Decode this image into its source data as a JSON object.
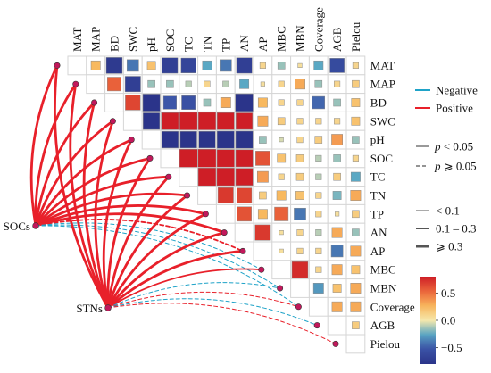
{
  "chart_data": {
    "type": "heatmap",
    "variables": [
      "MAT",
      "MAP",
      "BD",
      "SWC",
      "pH",
      "SOC",
      "TC",
      "TN",
      "TP",
      "AN",
      "AP",
      "MBC",
      "MBN",
      "Coverage",
      "AGB",
      "Pielou"
    ],
    "matrix_lower_triangle": [
      [],
      [
        0.25
      ],
      [
        -0.75,
        0.55
      ],
      [
        -0.4,
        -0.7,
        0.65
      ],
      [
        0.2,
        -0.15,
        -0.85,
        -0.8
      ],
      [
        -0.7,
        -0.15,
        -0.5,
        0.85,
        -0.8
      ],
      [
        -0.65,
        -0.1,
        -0.55,
        0.9,
        -0.8,
        0.95
      ],
      [
        -0.25,
        0.1,
        -0.15,
        0.9,
        -0.8,
        0.95,
        0.92
      ],
      [
        -0.4,
        -0.1,
        0.3,
        0.85,
        -0.85,
        0.88,
        0.9,
        0.7
      ],
      [
        -0.7,
        -0.25,
        -0.9,
        0.8,
        -0.85,
        0.85,
        0.85,
        0.65,
        0.6
      ],
      [
        0.1,
        0.05,
        0.25,
        0.3,
        -0.15,
        0.6,
        0.35,
        0.15,
        0.25,
        0.7
      ],
      [
        -0.15,
        0.1,
        0.1,
        0.15,
        -0.05,
        0.2,
        0.1,
        0.25,
        0.55,
        0.05,
        0.05
      ],
      [
        0.05,
        0.3,
        0.1,
        0.1,
        0.1,
        0.15,
        0.15,
        0.2,
        -0.4,
        0.1,
        0.1,
        0.75
      ],
      [
        -0.25,
        -0.15,
        -0.45,
        0.1,
        0.15,
        -0.1,
        -0.1,
        0.1,
        0.1,
        -0.1,
        0.1,
        0.1,
        -0.3
      ],
      [
        -0.6,
        0.1,
        -0.15,
        0.1,
        0.35,
        -0.15,
        0.15,
        -0.2,
        0.05,
        0.3,
        -0.4,
        0.3,
        0.2,
        0.3
      ],
      [
        0.1,
        0.15,
        0.2,
        0.2,
        -0.15,
        0.1,
        -0.25,
        0.3,
        0.15,
        -0.15,
        0.3,
        0.2,
        0.3,
        0.3,
        0.15
      ]
    ],
    "groups": [
      "SOCs",
      "STNs"
    ],
    "mantel_links": [
      {
        "from": "SOCs",
        "to": "MAT",
        "sign": "Positive",
        "p": "< 0.05",
        "r": ">= 0.3"
      },
      {
        "from": "SOCs",
        "to": "MAP",
        "sign": "Positive",
        "p": "< 0.05",
        "r": ">= 0.3"
      },
      {
        "from": "SOCs",
        "to": "BD",
        "sign": "Positive",
        "p": "< 0.05",
        "r": ">= 0.3"
      },
      {
        "from": "SOCs",
        "to": "SWC",
        "sign": "Positive",
        "p": "< 0.05",
        "r": ">= 0.3"
      },
      {
        "from": "SOCs",
        "to": "pH",
        "sign": "Positive",
        "p": "< 0.05",
        "r": ">= 0.3"
      },
      {
        "from": "SOCs",
        "to": "SOC",
        "sign": "Positive",
        "p": "< 0.05",
        "r": ">= 0.3"
      },
      {
        "from": "SOCs",
        "to": "TC",
        "sign": "Positive",
        "p": "< 0.05",
        "r": ">= 0.3"
      },
      {
        "from": "SOCs",
        "to": "TN",
        "sign": "Positive",
        "p": "< 0.05",
        "r": ">= 0.3"
      },
      {
        "from": "SOCs",
        "to": "TP",
        "sign": "Positive",
        "p": "< 0.05",
        "r": ">= 0.3"
      },
      {
        "from": "SOCs",
        "to": "AN",
        "sign": "Positive",
        "p": "< 0.05",
        "r": ">= 0.3"
      },
      {
        "from": "SOCs",
        "to": "AP",
        "sign": "Positive",
        "p": ">= 0.05",
        "r": "0.1 - 0.3"
      },
      {
        "from": "SOCs",
        "to": "MBC",
        "sign": "Negative",
        "p": ">= 0.05",
        "r": "< 0.1"
      },
      {
        "from": "SOCs",
        "to": "MBN",
        "sign": "Negative",
        "p": ">= 0.05",
        "r": "< 0.1"
      },
      {
        "from": "SOCs",
        "to": "Coverage",
        "sign": "Negative",
        "p": ">= 0.05",
        "r": "< 0.1"
      },
      {
        "from": "STNs",
        "to": "MAT",
        "sign": "Positive",
        "p": "< 0.05",
        "r": ">= 0.3"
      },
      {
        "from": "STNs",
        "to": "MAP",
        "sign": "Positive",
        "p": "< 0.05",
        "r": ">= 0.3"
      },
      {
        "from": "STNs",
        "to": "BD",
        "sign": "Positive",
        "p": "< 0.05",
        "r": ">= 0.3"
      },
      {
        "from": "STNs",
        "to": "SWC",
        "sign": "Positive",
        "p": "< 0.05",
        "r": ">= 0.3"
      },
      {
        "from": "STNs",
        "to": "pH",
        "sign": "Positive",
        "p": "< 0.05",
        "r": ">= 0.3"
      },
      {
        "from": "STNs",
        "to": "SOC",
        "sign": "Positive",
        "p": "< 0.05",
        "r": ">= 0.3"
      },
      {
        "from": "STNs",
        "to": "TC",
        "sign": "Positive",
        "p": "< 0.05",
        "r": ">= 0.3"
      },
      {
        "from": "STNs",
        "to": "TN",
        "sign": "Positive",
        "p": "< 0.05",
        "r": ">= 0.3"
      },
      {
        "from": "STNs",
        "to": "TP",
        "sign": "Positive",
        "p": "< 0.05",
        "r": ">= 0.3"
      },
      {
        "from": "STNs",
        "to": "AN",
        "sign": "Positive",
        "p": "< 0.05",
        "r": ">= 0.3"
      },
      {
        "from": "STNs",
        "to": "AP",
        "sign": "Positive",
        "p": "< 0.05",
        "r": ">= 0.3"
      },
      {
        "from": "STNs",
        "to": "MBC",
        "sign": "Positive",
        "p": "< 0.05",
        "r": "0.1 - 0.3"
      },
      {
        "from": "STNs",
        "to": "MBN",
        "sign": "Negative",
        "p": ">= 0.05",
        "r": "< 0.1"
      },
      {
        "from": "STNs",
        "to": "Coverage",
        "sign": "Positive",
        "p": ">= 0.05",
        "r": "< 0.1"
      },
      {
        "from": "STNs",
        "to": "AGB",
        "sign": "Negative",
        "p": ">= 0.05",
        "r": "< 0.1"
      },
      {
        "from": "STNs",
        "to": "Pielou",
        "sign": "Positive",
        "p": ">= 0.05",
        "r": "< 0.1"
      }
    ],
    "legend": {
      "sign": [
        {
          "label": "Negative",
          "color": "#1fa3c8"
        },
        {
          "label": "Positive",
          "color": "#e8202a"
        }
      ],
      "p_values": [
        {
          "p": "p",
          "rest": " < 0.05",
          "style": "solid"
        },
        {
          "p": "p",
          "rest": " ⩾ 0.05",
          "style": "dashed"
        }
      ],
      "r_values": [
        {
          "label": "< 0.1",
          "width": 1
        },
        {
          "label": "0.1 – 0.3",
          "width": 2
        },
        {
          "label": "⩾ 0.3",
          "width": 3
        }
      ],
      "colorbar": {
        "ticks": [
          "0.5",
          "0.0",
          "−0.5"
        ],
        "range": [
          -0.8,
          0.8
        ]
      }
    },
    "colors": {
      "positive": "#e8202a",
      "negative": "#1fa3c8",
      "node": "#c2185b"
    }
  }
}
